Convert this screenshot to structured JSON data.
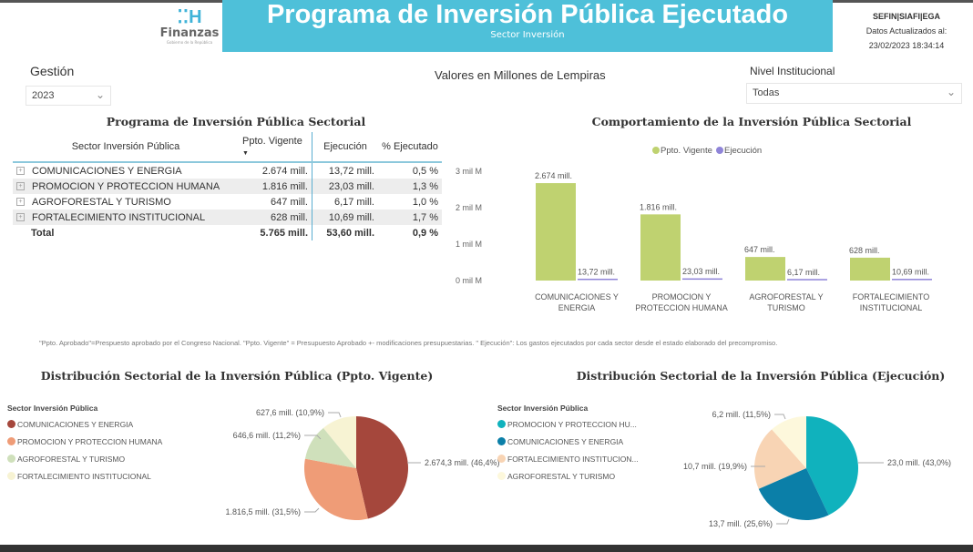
{
  "header": {
    "title": "Programa de Inversión Pública Ejecutado",
    "subtitle": "Sector Inversión",
    "logo": {
      "mark": "H",
      "name": "Finanzas",
      "tagline": "Gobierno de la República"
    },
    "system": "SEFIN|SIAFI|EGA",
    "updated_label": "Datos Actualizados al:",
    "updated_value": "23/02/2023 18:34:14"
  },
  "filters": {
    "gestion_label": "Gestión",
    "gestion_value": "2023",
    "units_label": "Valores en Millones de Lempiras",
    "nivel_label": "Nivel Institucional",
    "nivel_value": "Todas"
  },
  "table": {
    "title": "Programa de Inversión Pública Sectorial",
    "columns": [
      "Sector Inversión Pública",
      "Ppto. Vigente",
      "Ejecución",
      "% Ejecutado"
    ],
    "rows": [
      [
        "COMUNICACIONES Y ENERGIA",
        "2.674 mill.",
        "13,72 mill.",
        "0,5 %"
      ],
      [
        "PROMOCION Y PROTECCION HUMANA",
        "1.816 mill.",
        "23,03 mill.",
        "1,3 %"
      ],
      [
        "AGROFORESTAL Y TURISMO",
        "647 mill.",
        "6,17 mill.",
        "1,0 %"
      ],
      [
        "FORTALECIMIENTO INSTITUCIONAL",
        "628 mill.",
        "10,69 mill.",
        "1,7 %"
      ]
    ],
    "total": [
      "Total",
      "5.765 mill.",
      "53,60 mill.",
      "0,9 %"
    ]
  },
  "note": "\"Ppto. Aprobado\"=Prespuesto aprobado por el Congreso Nacional. \"Ppto. Vigente\" = Presupuesto Aprobado +- modificaciones presupuestarias. \" Ejecución\": Los gastos ejecutados por cada sector desde el estado elaborado del precompromiso.",
  "chart_data": [
    {
      "type": "bar",
      "title": "Comportamiento de la Inversión Pública Sectorial",
      "categories": [
        "COMUNICACIONES Y ENERGIA",
        "PROMOCION Y PROTECCION HUMANA",
        "AGROFORESTAL Y TURISMO",
        "FORTALECIMIENTO INSTITUCIONAL"
      ],
      "category_lines": [
        [
          "COMUNICACIONES Y",
          "ENERGIA"
        ],
        [
          "PROMOCION Y",
          "PROTECCION HUMANA"
        ],
        [
          "AGROFORESTAL Y",
          "TURISMO"
        ],
        [
          "FORTALECIMIENTO",
          "INSTITUCIONAL"
        ]
      ],
      "series": [
        {
          "name": "Ppto. Vigente",
          "color": "#bfd270",
          "values": [
            2674,
            1816,
            647,
            628
          ],
          "labels": [
            "2.674 mill.",
            "1.816 mill.",
            "647 mill.",
            "628 mill."
          ]
        },
        {
          "name": "Ejecución",
          "color": "#8f84d8",
          "values": [
            13.72,
            23.03,
            6.17,
            10.69
          ],
          "labels": [
            "13,72 mill.",
            "23,03 mill.",
            "6,17 mill.",
            "10,69 mill."
          ]
        }
      ],
      "yticks": [
        0,
        1000,
        2000,
        3000
      ],
      "ytick_labels": [
        "0 mil M",
        "1 mil M",
        "2 mil M",
        "3 mil M"
      ],
      "ylim": [
        0,
        3000
      ],
      "legend": "top",
      "grid": false
    },
    {
      "type": "pie",
      "title": "Distribución Sectorial de la Inversión Pública (Ppto. Vigente)",
      "legend_title": "Sector Inversión Pública",
      "slices": [
        {
          "name": "COMUNICACIONES Y ENERGIA",
          "value": 2674.3,
          "label": "2.674,3 mill. (46,4%)",
          "color": "#a5473c"
        },
        {
          "name": "PROMOCION Y PROTECCION HUMANA",
          "value": 1816.5,
          "label": "1.816,5 mill. (31,5%)",
          "color": "#ef9c77"
        },
        {
          "name": "AGROFORESTAL Y TURISMO",
          "value": 646.6,
          "label": "646,6 mill. (11,2%)",
          "color": "#cfe0bb"
        },
        {
          "name": "FORTALECIMIENTO INSTITUCIONAL",
          "value": 627.6,
          "label": "627,6 mill. (10,9%)",
          "color": "#f7f3d3"
        }
      ]
    },
    {
      "type": "pie",
      "title": "Distribución Sectorial de la Inversión Pública (Ejecución)",
      "legend_title": "Sector Inversión Pública",
      "slices": [
        {
          "name": "PROMOCION Y PROTECCION HU...",
          "value": 23.0,
          "label": "23,0 mill. (43,0%)",
          "color": "#10b2bd"
        },
        {
          "name": "COMUNICACIONES Y ENERGIA",
          "value": 13.7,
          "label": "13,7 mill. (25,6%)",
          "color": "#0b7fa8"
        },
        {
          "name": "FORTALECIMIENTO INSTITUCION...",
          "value": 10.7,
          "label": "10,7 mill. (19,9%)",
          "color": "#f8d4b4"
        },
        {
          "name": "AGROFORESTAL Y TURISMO",
          "value": 6.2,
          "label": "6,2 mill. (11,5%)",
          "color": "#fdf8dc"
        }
      ]
    }
  ]
}
